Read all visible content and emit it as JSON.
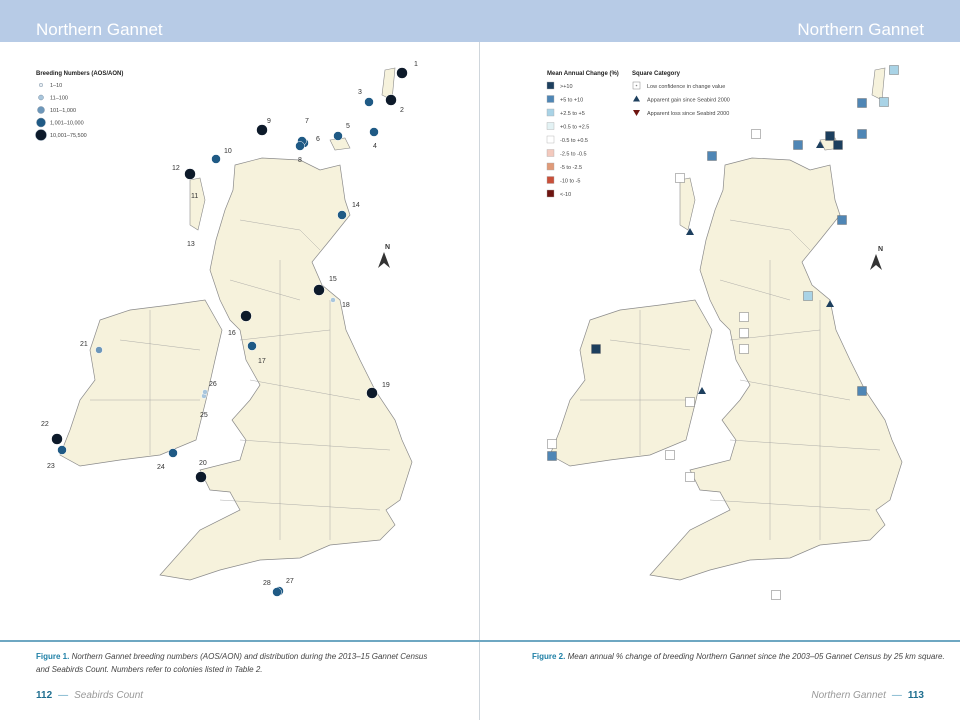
{
  "left_page": {
    "header_title": "Northern Gannet",
    "legend": {
      "title": "Breeding Numbers (AOS/AON)",
      "items": [
        {
          "label": "1–10",
          "color": "#e8eef3"
        },
        {
          "label": "11–100",
          "color": "#a9c6dc"
        },
        {
          "label": "101–1,000",
          "color": "#6d97ba"
        },
        {
          "label": "1,001–10,000",
          "color": "#1f5a85"
        },
        {
          "label": "10,001–75,500",
          "color": "#0d1a2a"
        }
      ]
    },
    "colonies": [
      {
        "id": "1",
        "size": 4
      },
      {
        "id": "2",
        "size": 4
      },
      {
        "id": "3",
        "size": 3
      },
      {
        "id": "4",
        "size": 3
      },
      {
        "id": "5",
        "size": 3
      },
      {
        "id": "6",
        "size": 3
      },
      {
        "id": "7",
        "size": 3
      },
      {
        "id": "8",
        "size": 3
      },
      {
        "id": "9",
        "size": 4
      },
      {
        "id": "10",
        "size": 3
      },
      {
        "id": "11",
        "size": 4
      },
      {
        "id": "12",
        "size": 4
      },
      {
        "id": "13",
        "size": 0
      },
      {
        "id": "14",
        "size": 3
      },
      {
        "id": "15",
        "size": 4
      },
      {
        "id": "16",
        "size": 4
      },
      {
        "id": "17",
        "size": 3
      },
      {
        "id": "18",
        "size": 1
      },
      {
        "id": "19",
        "size": 4
      },
      {
        "id": "20",
        "size": 4
      },
      {
        "id": "21",
        "size": 2
      },
      {
        "id": "22",
        "size": 4
      },
      {
        "id": "23",
        "size": 3
      },
      {
        "id": "24",
        "size": 3
      },
      {
        "id": "25",
        "size": 1
      },
      {
        "id": "26",
        "size": 1
      },
      {
        "id": "27",
        "size": 3
      },
      {
        "id": "28",
        "size": 3
      }
    ],
    "north_label": "N",
    "caption_label": "Figure 1.",
    "caption_text": "Northern Gannet breeding numbers (AOS/AON) and distribution during the 2013–15 Gannet Census and Seabirds Count. Numbers refer to colonies listed in Table 2.",
    "page_number": "112",
    "running_title": "Seabirds Count"
  },
  "right_page": {
    "header_title": "Northern Gannet",
    "legend_change": {
      "title": "Mean Annual Change (%)",
      "items": [
        {
          "label": ">+10",
          "color": "#1d3f5e"
        },
        {
          "label": "+5 to +10",
          "color": "#4f86b5"
        },
        {
          "label": "+2.5 to +5",
          "color": "#a9d3e6"
        },
        {
          "label": "+0.5 to +2.5",
          "color": "#e3f2f4"
        },
        {
          "label": "-0.5 to +0.5",
          "color": "#ffffff"
        },
        {
          "label": "-2.5 to -0.5",
          "color": "#f3c9bd"
        },
        {
          "label": "-5 to -2.5",
          "color": "#e09a78"
        },
        {
          "label": "-10 to -5",
          "color": "#c9503a"
        },
        {
          "label": "<-10",
          "color": "#6e1410"
        }
      ]
    },
    "legend_category": {
      "title": "Square Category",
      "items": [
        {
          "label": "Low confidence in change value",
          "symbol": "boxed-dot"
        },
        {
          "label": "Apparent gain since Seabird 2000",
          "symbol": "triangle-up"
        },
        {
          "label": "Apparent loss since Seabird 2000",
          "symbol": "triangle-down"
        }
      ]
    },
    "north_label": "N",
    "caption_label": "Figure 2.",
    "caption_text": "Mean annual % change of breeding Northern Gannet since the 2003–05 Gannet Census by 25 km square.",
    "page_number": "113",
    "running_title": "Northern Gannet"
  }
}
